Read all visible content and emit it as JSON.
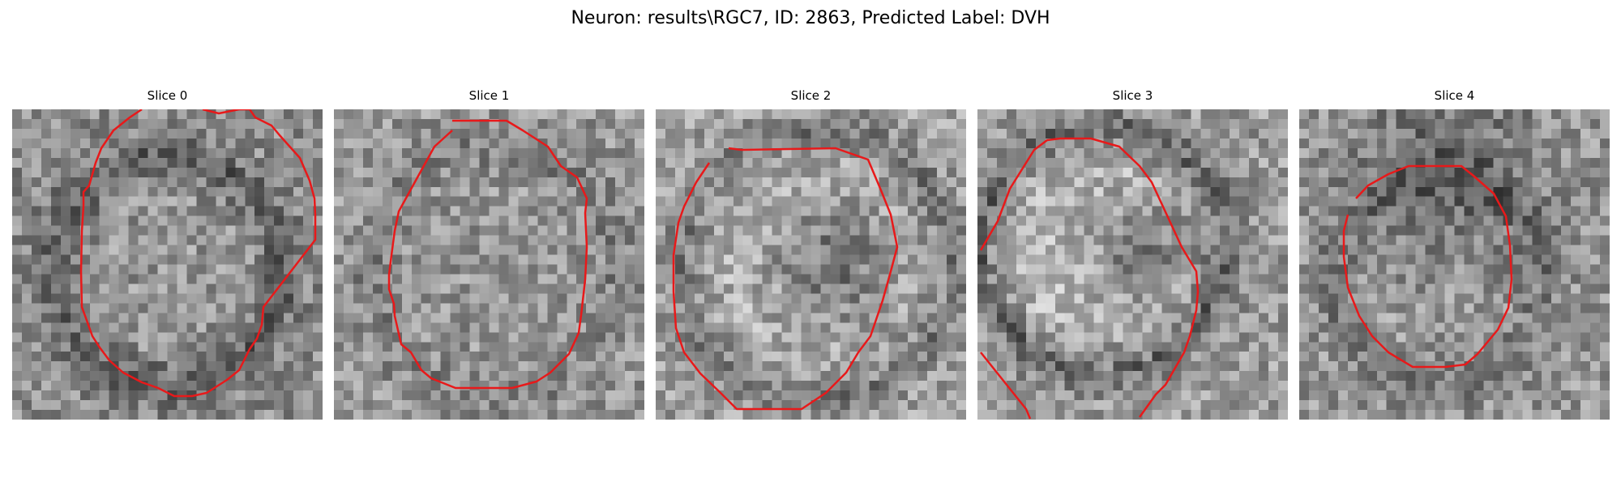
{
  "figure": {
    "title": "Neuron: results\\RGC7, ID: 2863, Predicted Label: DVH"
  },
  "contour_color": "#e8191a",
  "panels": [
    {
      "label": "Slice 0"
    },
    {
      "label": "Slice 1"
    },
    {
      "label": "Slice 2"
    },
    {
      "label": "Slice 3"
    },
    {
      "label": "Slice 4"
    }
  ]
}
